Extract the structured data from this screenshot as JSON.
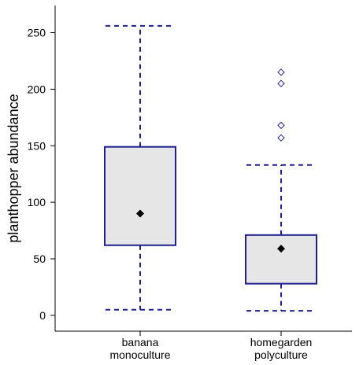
{
  "chart_data": {
    "type": "box",
    "ylabel": "planthopper abundance",
    "xlabel": "",
    "ylim": [
      -14,
      274
    ],
    "yticks": [
      0,
      50,
      100,
      150,
      200,
      250
    ],
    "grid": false,
    "legend": "none",
    "categories": [
      {
        "name_lines": [
          "banana",
          "monoculture"
        ]
      },
      {
        "name_lines": [
          "homegarden",
          "polyculture"
        ]
      }
    ],
    "boxes": [
      {
        "category": "banana monoculture",
        "whisker_low": 5,
        "q1": 62,
        "mean": 90,
        "q3": 149,
        "whisker_high": 256,
        "outliers": []
      },
      {
        "category": "homegarden polyculture",
        "whisker_low": 4,
        "q1": 28,
        "mean": 59,
        "q3": 71,
        "whisker_high": 133,
        "outliers": [
          157,
          168,
          205,
          215
        ]
      }
    ],
    "colors": {
      "box_border": "#1f1f8f",
      "box_fill": "#e6e6e6",
      "whisker": "#1f1f8f",
      "mean_marker": "#000000",
      "outlier": "#1f1f8f",
      "axis": "#000000"
    }
  }
}
